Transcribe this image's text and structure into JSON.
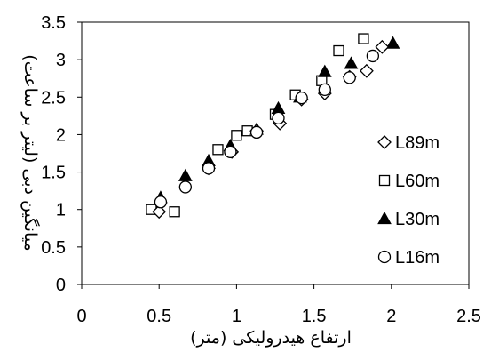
{
  "chart_data": {
    "type": "scatter",
    "title": "",
    "xlabel": "ارتفاع هیدرولیکی (متر)",
    "ylabel": "میانگین دبی (لیتر بر ساعت)",
    "xlim": [
      0,
      2.5
    ],
    "ylim": [
      0,
      3.5
    ],
    "x_ticks": [
      "0",
      "0.5",
      "1",
      "1.5",
      "2",
      "2.5"
    ],
    "y_ticks": [
      "0",
      "0.5",
      "1",
      "1.5",
      "2",
      "2.5",
      "3",
      "3.5"
    ],
    "x_tick_values": [
      0,
      0.5,
      1,
      1.5,
      2,
      2.5
    ],
    "y_tick_values": [
      0,
      0.5,
      1,
      1.5,
      2,
      2.5,
      3,
      3.5
    ],
    "grid": false,
    "legend_position": "right",
    "series": [
      {
        "name": "L89m",
        "marker": "diamond-open",
        "points": [
          [
            0.5,
            0.97
          ],
          [
            0.82,
            1.55
          ],
          [
            0.97,
            1.77
          ],
          [
            1.13,
            2.05
          ],
          [
            1.28,
            2.15
          ],
          [
            1.42,
            2.47
          ],
          [
            1.57,
            2.55
          ],
          [
            1.73,
            2.77
          ],
          [
            1.84,
            2.85
          ],
          [
            1.94,
            3.17
          ]
        ]
      },
      {
        "name": "L60m",
        "marker": "square-open",
        "points": [
          [
            0.45,
            1.0
          ],
          [
            0.6,
            0.97
          ],
          [
            0.88,
            1.8
          ],
          [
            1.0,
            1.99
          ],
          [
            1.07,
            2.05
          ],
          [
            1.25,
            2.27
          ],
          [
            1.38,
            2.53
          ],
          [
            1.55,
            2.72
          ],
          [
            1.66,
            3.12
          ],
          [
            1.82,
            3.28
          ]
        ]
      },
      {
        "name": "L30m",
        "marker": "triangle-filled",
        "points": [
          [
            0.51,
            1.16
          ],
          [
            0.67,
            1.45
          ],
          [
            0.82,
            1.65
          ],
          [
            0.96,
            1.85
          ],
          [
            1.13,
            2.07
          ],
          [
            1.27,
            2.35
          ],
          [
            1.41,
            2.5
          ],
          [
            1.57,
            2.84
          ],
          [
            1.74,
            2.95
          ],
          [
            2.01,
            3.22
          ]
        ]
      },
      {
        "name": "L16m",
        "marker": "circle-open",
        "points": [
          [
            0.51,
            1.1
          ],
          [
            0.67,
            1.3
          ],
          [
            0.82,
            1.55
          ],
          [
            0.96,
            1.77
          ],
          [
            1.13,
            2.03
          ],
          [
            1.27,
            2.22
          ],
          [
            1.42,
            2.49
          ],
          [
            1.57,
            2.6
          ],
          [
            1.73,
            2.76
          ],
          [
            1.88,
            3.05
          ]
        ]
      }
    ]
  }
}
